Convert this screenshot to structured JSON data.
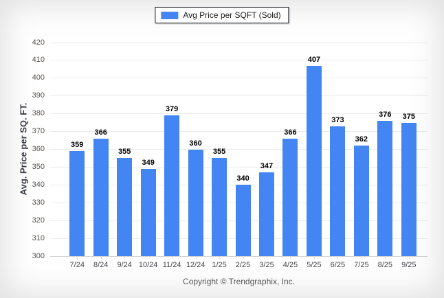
{
  "legend": {
    "label": "Avg Price per SQFT (Sold)",
    "swatch_color": "#4285f3"
  },
  "footer": {
    "copyright": "Copyright © Trendgraphix, Inc."
  },
  "chart_data": {
    "type": "bar",
    "categories": [
      "7/24",
      "8/24",
      "9/24",
      "10/24",
      "11/24",
      "12/24",
      "1/25",
      "2/25",
      "3/25",
      "4/25",
      "5/25",
      "6/25",
      "7/25",
      "8/25",
      "9/25"
    ],
    "values": [
      359,
      366,
      355,
      349,
      379,
      360,
      355,
      340,
      347,
      366,
      407,
      373,
      362,
      376,
      375
    ],
    "title": "Avg Price per SQFT (Sold)",
    "xlabel": "",
    "ylabel": "Avg. Price per SQ. FT.",
    "ylim": [
      300,
      420
    ],
    "ytick_step": 10,
    "grid": true,
    "legend_position": "top-center",
    "bar_color": "#4285f3",
    "value_labels_shown": true
  }
}
